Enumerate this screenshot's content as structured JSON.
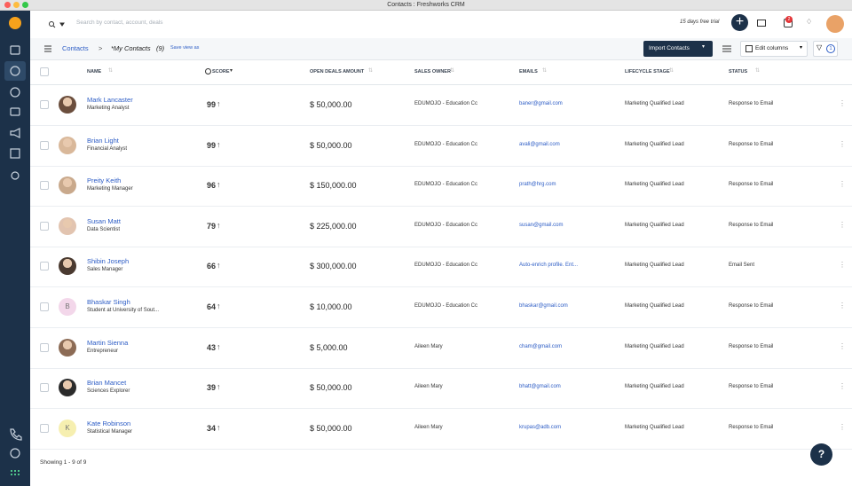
{
  "window": {
    "title": "Contacts : Freshworks CRM"
  },
  "topbar": {
    "search_placeholder": "Search by contact, account, deals",
    "trial": "15 days free trial",
    "notification_count": "2"
  },
  "toolbar": {
    "breadcrumb": "Contacts",
    "view": "*My Contacts",
    "count": "(9)",
    "save_view": "Save view as",
    "import": "Import Contacts",
    "edit_columns": "Edit columns",
    "filter_count": "1"
  },
  "table": {
    "columns": [
      "NAME",
      "SCORE",
      "OPEN DEALS AMOUNT",
      "SALES OWNER",
      "EMAILS",
      "LIFECYCLE STAGE",
      "STATUS"
    ],
    "rows": [
      {
        "name": "Mark Lancaster",
        "title": "Marketing Analyst",
        "score": 99,
        "amount": "$ 50,000.00",
        "owner": "EDUMOJO - Education Cc",
        "email": "baner@gmail.com",
        "stage": "Marketing Qualified Lead",
        "status": "Response to Email"
      },
      {
        "name": "Brian Light",
        "title": "Financial Analyst",
        "score": 99,
        "amount": "$ 50,000.00",
        "owner": "EDUMOJO - Education Cc",
        "email": "avali@gmail.com",
        "stage": "Marketing Qualified Lead",
        "status": "Response to Email"
      },
      {
        "name": "Preity Keith",
        "title": "Marketing Manager",
        "score": 96,
        "amount": "$ 150,000.00",
        "owner": "EDUMOJO - Education Cc",
        "email": "prath@hrg.com",
        "stage": "Marketing Qualified Lead",
        "status": "Response to Email"
      },
      {
        "name": "Susan Matt",
        "title": "Data Scientist",
        "score": 79,
        "amount": "$ 225,000.00",
        "owner": "EDUMOJO - Education Cc",
        "email": "susan@gmail.com",
        "stage": "Marketing Qualified Lead",
        "status": "Response to Email"
      },
      {
        "name": "Shibin Joseph",
        "title": "Sales Manager",
        "score": 66,
        "amount": "$ 300,000.00",
        "owner": "EDUMOJO - Education Cc",
        "email": "Auto-enrich profile. Ent...",
        "stage": "Marketing Qualified Lead",
        "status": "Email Sent"
      },
      {
        "name": "Bhaskar Singh",
        "title": "Student at University of Sout...",
        "score": 64,
        "amount": "$ 10,000.00",
        "owner": "EDUMOJO - Education Cc",
        "email": "bhaskar@gmail.com",
        "stage": "Marketing Qualified Lead",
        "status": "Response to Email",
        "initial": "B"
      },
      {
        "name": "Martin Sienna",
        "title": "Entrepreneur",
        "score": 43,
        "amount": "$ 5,000.00",
        "owner": "Aileen Mary",
        "email": "cham@gmail.com",
        "stage": "Marketing Qualified Lead",
        "status": "Response to Email"
      },
      {
        "name": "Brian Mancet",
        "title": "Sciences Explorer",
        "score": 39,
        "amount": "$ 50,000.00",
        "owner": "Aileen Mary",
        "email": "bhatt@gmail.com",
        "stage": "Marketing Qualified Lead",
        "status": "Response to Email"
      },
      {
        "name": "Kate Robinson",
        "title": "Statistical Manager",
        "score": 34,
        "amount": "$ 50,000.00",
        "owner": "Aileen Mary",
        "email": "krupas@adb.com",
        "stage": "Marketing Qualified Lead",
        "status": "Response to Email",
        "initial": "K"
      }
    ]
  },
  "footer": {
    "showing": "Showing 1 - 9 of 9"
  },
  "help": "?"
}
